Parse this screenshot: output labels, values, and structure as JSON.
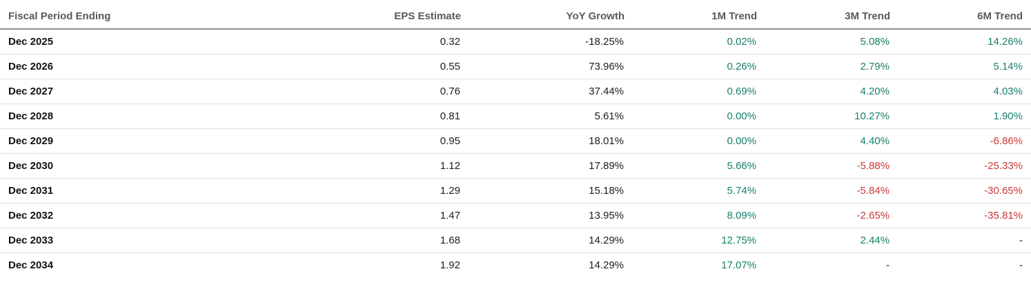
{
  "colors": {
    "positive": "#17806a",
    "negative": "#c83737",
    "header_text": "#58595b",
    "row_text": "#1c1c1c"
  },
  "table": {
    "columns": {
      "period": "Fiscal Period Ending",
      "eps": "EPS Estimate",
      "yoy": "YoY Growth",
      "m1": "1M Trend",
      "m3": "3M Trend",
      "m6": "6M Trend"
    },
    "rows": [
      {
        "period": "Dec 2025",
        "eps": "0.32",
        "yoy": "-18.25%",
        "m1": "0.02%",
        "m1_tone": "pos",
        "m3": "5.08%",
        "m3_tone": "pos",
        "m6": "14.26%",
        "m6_tone": "pos"
      },
      {
        "period": "Dec 2026",
        "eps": "0.55",
        "yoy": "73.96%",
        "m1": "0.26%",
        "m1_tone": "pos",
        "m3": "2.79%",
        "m3_tone": "pos",
        "m6": "5.14%",
        "m6_tone": "pos"
      },
      {
        "period": "Dec 2027",
        "eps": "0.76",
        "yoy": "37.44%",
        "m1": "0.69%",
        "m1_tone": "pos",
        "m3": "4.20%",
        "m3_tone": "pos",
        "m6": "4.03%",
        "m6_tone": "pos"
      },
      {
        "period": "Dec 2028",
        "eps": "0.81",
        "yoy": "5.61%",
        "m1": "0.00%",
        "m1_tone": "pos",
        "m3": "10.27%",
        "m3_tone": "pos",
        "m6": "1.90%",
        "m6_tone": "pos"
      },
      {
        "period": "Dec 2029",
        "eps": "0.95",
        "yoy": "18.01%",
        "m1": "0.00%",
        "m1_tone": "pos",
        "m3": "4.40%",
        "m3_tone": "pos",
        "m6": "-6.86%",
        "m6_tone": "neg"
      },
      {
        "period": "Dec 2030",
        "eps": "1.12",
        "yoy": "17.89%",
        "m1": "5.66%",
        "m1_tone": "pos",
        "m3": "-5.88%",
        "m3_tone": "neg",
        "m6": "-25.33%",
        "m6_tone": "neg"
      },
      {
        "period": "Dec 2031",
        "eps": "1.29",
        "yoy": "15.18%",
        "m1": "5.74%",
        "m1_tone": "pos",
        "m3": "-5.84%",
        "m3_tone": "neg",
        "m6": "-30.65%",
        "m6_tone": "neg"
      },
      {
        "period": "Dec 2032",
        "eps": "1.47",
        "yoy": "13.95%",
        "m1": "8.09%",
        "m1_tone": "pos",
        "m3": "-2.65%",
        "m3_tone": "neg",
        "m6": "-35.81%",
        "m6_tone": "neg"
      },
      {
        "period": "Dec 2033",
        "eps": "1.68",
        "yoy": "14.29%",
        "m1": "12.75%",
        "m1_tone": "pos",
        "m3": "2.44%",
        "m3_tone": "pos",
        "m6": "-",
        "m6_tone": "neutral"
      },
      {
        "period": "Dec 2034",
        "eps": "1.92",
        "yoy": "14.29%",
        "m1": "17.07%",
        "m1_tone": "pos",
        "m3": "-",
        "m3_tone": "neutral",
        "m6": "-",
        "m6_tone": "neutral"
      }
    ]
  }
}
